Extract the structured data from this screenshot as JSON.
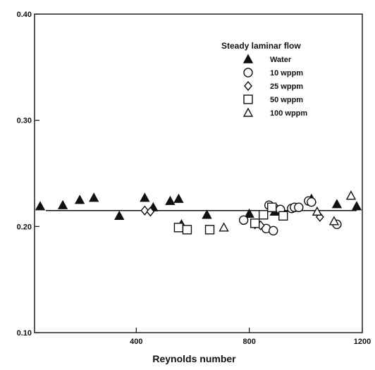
{
  "chart_data": {
    "type": "scatter",
    "title": "",
    "xlabel": "Reynolds number",
    "ylabel": "",
    "xlim": [
      40,
      1200
    ],
    "ylim": [
      0.1,
      0.4
    ],
    "x_ticks": [
      400,
      800,
      1200
    ],
    "y_ticks": [
      0.1,
      0.2,
      0.3,
      0.4
    ],
    "x_tick_labels": [
      "400",
      "800",
      "1200"
    ],
    "y_tick_labels": [
      "0.10",
      "0.20",
      "0.30",
      "0.40"
    ],
    "grid": false,
    "legend": {
      "title": "Steady laminar flow",
      "placement": "top-right"
    },
    "reference_line": {
      "x": [
        80,
        1180
      ],
      "y": [
        0.215,
        0.215
      ]
    },
    "series": [
      {
        "name": "Water",
        "marker": "filled-triangle",
        "x": [
          60,
          140,
          200,
          250,
          340,
          430,
          460,
          520,
          550,
          560,
          650,
          800,
          890,
          1020,
          1110,
          1180
        ],
        "y": [
          0.219,
          0.22,
          0.225,
          0.227,
          0.21,
          0.227,
          0.218,
          0.224,
          0.226,
          0.202,
          0.211,
          0.212,
          0.214,
          0.226,
          0.221,
          0.219
        ]
      },
      {
        "name": "10  wppm",
        "marker": "open-circle",
        "x": [
          780,
          860,
          870,
          885,
          890,
          910,
          950,
          960,
          975,
          1010,
          1020,
          1110
        ],
        "y": [
          0.206,
          0.198,
          0.22,
          0.196,
          0.217,
          0.216,
          0.217,
          0.218,
          0.218,
          0.224,
          0.223,
          0.202
        ]
      },
      {
        "name": "25  wppm",
        "marker": "open-diamond",
        "x": [
          430,
          450,
          820,
          840,
          1050
        ],
        "y": [
          0.215,
          0.214,
          0.202,
          0.201,
          0.209
        ]
      },
      {
        "name": "50  wppm",
        "marker": "open-square",
        "x": [
          550,
          580,
          660,
          820,
          850,
          880,
          920
        ],
        "y": [
          0.199,
          0.197,
          0.197,
          0.203,
          0.211,
          0.218,
          0.21
        ]
      },
      {
        "name": "100 wppm",
        "marker": "open-triangle",
        "x": [
          710,
          1040,
          1100,
          1160
        ],
        "y": [
          0.199,
          0.214,
          0.205,
          0.229
        ]
      }
    ]
  }
}
